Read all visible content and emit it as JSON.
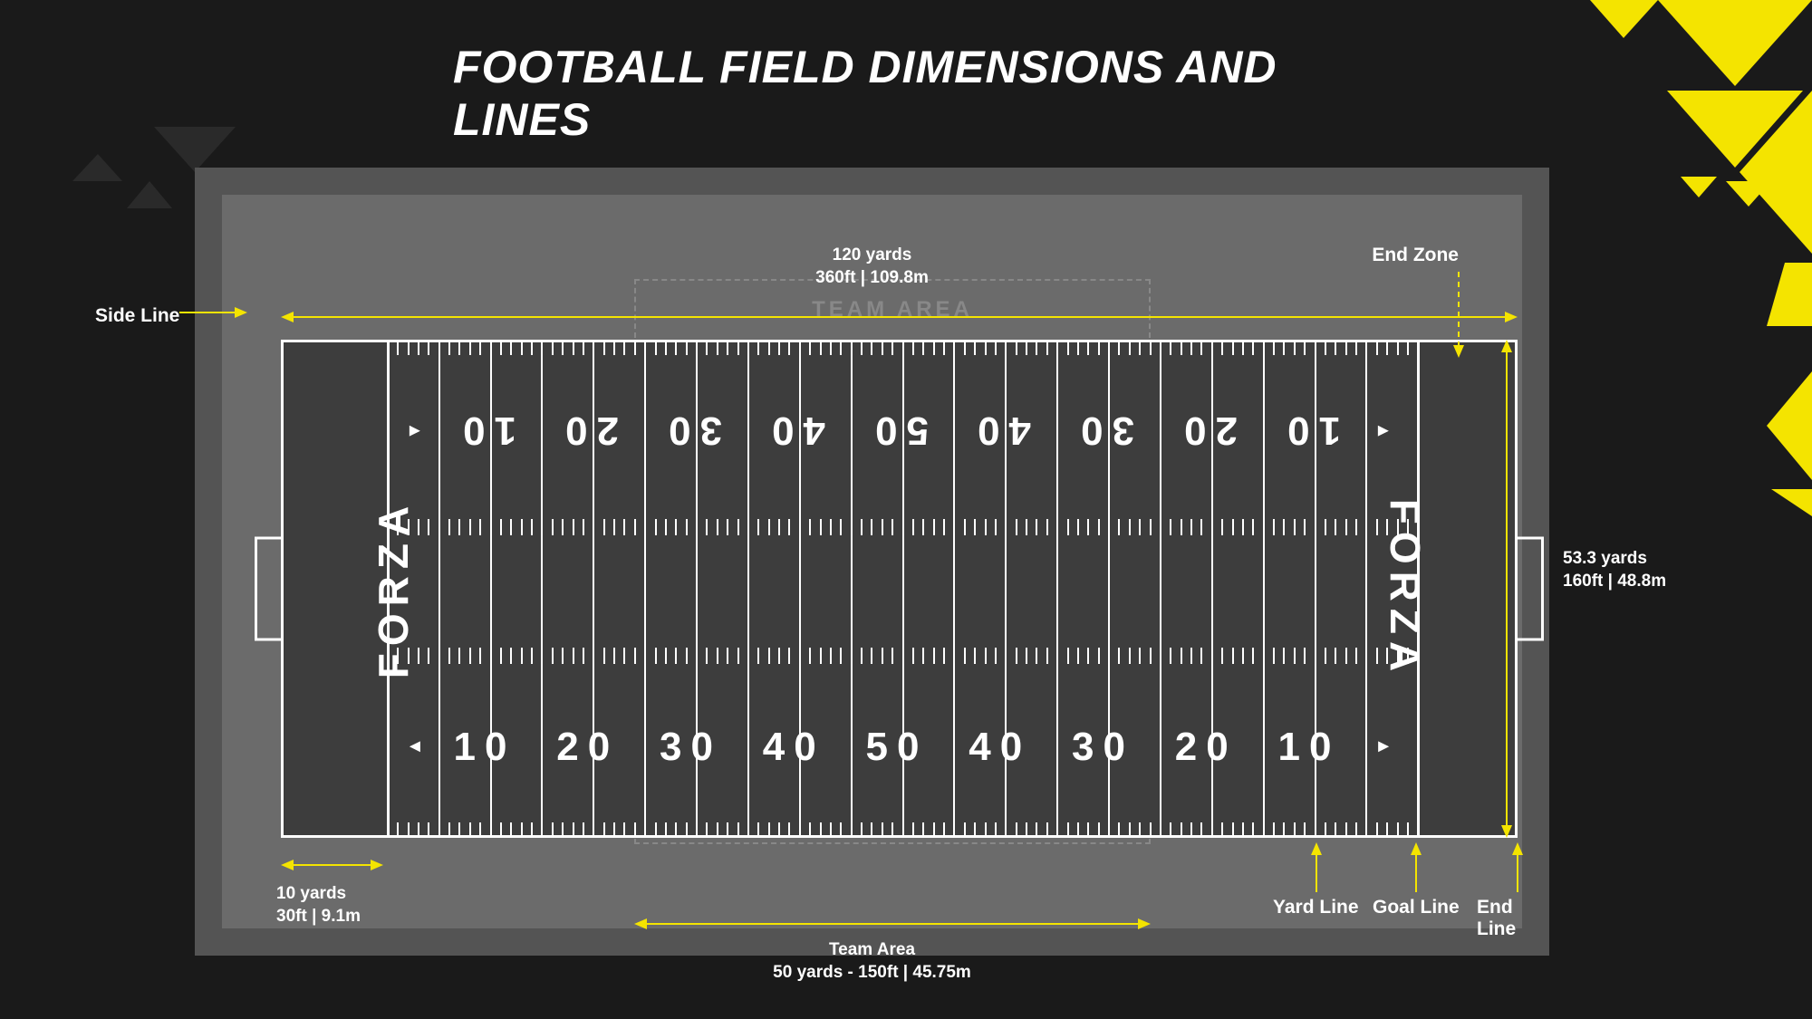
{
  "title": "FOOTBALL FIELD DIMENSIONS AND LINES",
  "colors": {
    "background": "#1a1a1a",
    "container": "#545454",
    "innerborder": "#6b6b6b",
    "field": "#3d3d3d",
    "line": "#ffffff",
    "accent": "#f4e400",
    "dimmed": "#888888"
  },
  "endzone_text": "FORZA",
  "team_area_text": "TEAM AREA",
  "yard_numbers": [
    "10",
    "20",
    "30",
    "40",
    "50",
    "40",
    "30",
    "20",
    "10"
  ],
  "dimensions": {
    "length": {
      "title": "120  yards",
      "sub": "360ft | 109.8m"
    },
    "width": {
      "title": "53.3 yards",
      "sub": "160ft | 48.8m"
    },
    "endzone": {
      "title": "10 yards",
      "sub": "30ft | 9.1m"
    },
    "team_area": {
      "title": "Team Area",
      "sub": "50 yards - 150ft | 45.75m"
    }
  },
  "labels": {
    "side_line": "Side Line",
    "end_zone": "End Zone",
    "yard_line": "Yard Line",
    "goal_line": "Goal Line",
    "end_line": "End Line"
  }
}
